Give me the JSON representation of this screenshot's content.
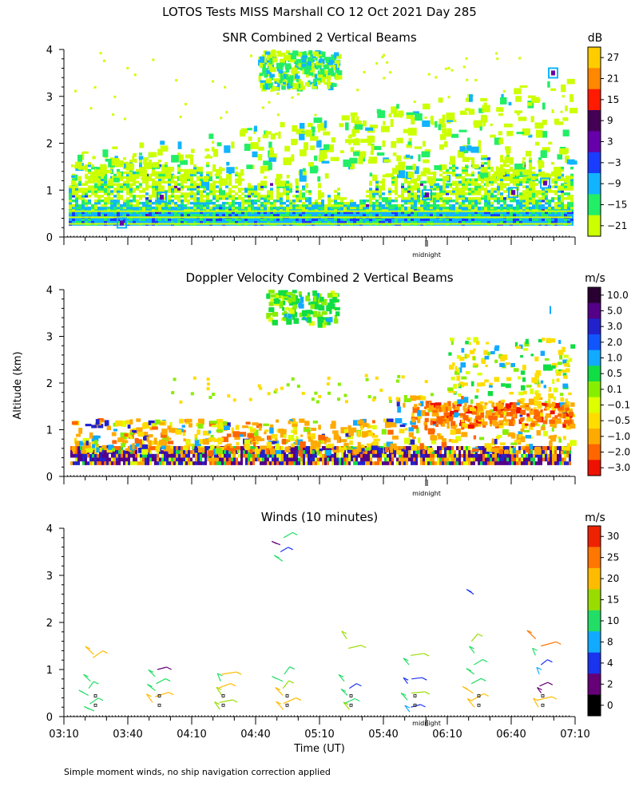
{
  "title": "LOTOS Tests MISS Marshall CO  12 Oct 2021 Day 285",
  "ylabel": "Altitude (km)",
  "xlabel": "Time (UT)",
  "footnote": "Simple moment winds, no ship navigation correction applied",
  "midnight_label": "midnight",
  "colors": {
    "axis": "#000000",
    "background": "#ffffff"
  },
  "chart_data": [
    {
      "id": "snr",
      "type": "heatmap",
      "title": "SNR Combined 2 Vertical Beams",
      "ylim": [
        0,
        4
      ],
      "yticks": [
        "0",
        "1",
        "2",
        "3",
        "4"
      ],
      "xlim_minutes": [
        190,
        430
      ],
      "colorbar": {
        "unit": "dB",
        "labels": [
          "27",
          "21",
          "15",
          "9",
          "3",
          "−3",
          "−9",
          "−15",
          "−21"
        ],
        "colors": [
          "#ffcc00",
          "#ff8800",
          "#ff1a00",
          "#440055",
          "#6600aa",
          "#1a3cff",
          "#11b4ff",
          "#22ee66",
          "#ccff00"
        ]
      }
    },
    {
      "id": "doppler",
      "type": "heatmap",
      "title": "Doppler Velocity Combined 2 Vertical Beams",
      "ylim": [
        0,
        4
      ],
      "yticks": [
        "0",
        "1",
        "2",
        "3",
        "4"
      ],
      "xlim_minutes": [
        190,
        430
      ],
      "colorbar": {
        "unit": "m/s",
        "labels": [
          "10.0",
          "5.0",
          "3.0",
          "2.0",
          "1.0",
          "0.5",
          "0.1",
          "−0.1",
          "−0.5",
          "−1.0",
          "−2.0",
          "−3.0"
        ],
        "colors": [
          "#2a0033",
          "#550088",
          "#2222cc",
          "#1155ff",
          "#11aaff",
          "#11dd44",
          "#88ee00",
          "#ddff00",
          "#ffdd00",
          "#ffaa00",
          "#ff6600",
          "#ee1100"
        ]
      }
    },
    {
      "id": "winds",
      "type": "scatter",
      "title": "Winds (10 minutes)",
      "ylim": [
        0,
        4
      ],
      "yticks": [
        "0",
        "1",
        "2",
        "3",
        "4"
      ],
      "xlim_minutes": [
        190,
        430
      ],
      "xticks": [
        "03:10",
        "03:40",
        "04:10",
        "04:40",
        "05:10",
        "05:40",
        "06:10",
        "06:40",
        "07:10"
      ],
      "colorbar": {
        "unit": "m/s",
        "labels": [
          "30",
          "25",
          "20",
          "15",
          "10",
          "8",
          "4",
          "2",
          "0"
        ],
        "colors": [
          "#ee2200",
          "#ff7700",
          "#ffbb00",
          "#99dd00",
          "#22dd66",
          "#11aaff",
          "#1a33ee",
          "#660077",
          "#000000"
        ]
      },
      "profiles": [
        {
          "time_min": 205,
          "barbs": [
            [
              0.12,
              10
            ],
            [
              0.27,
              12
            ],
            [
              0.45,
              12
            ],
            [
              0.6,
              10
            ],
            [
              0.75,
              14
            ],
            [
              1.25,
              20
            ],
            [
              1.32,
              22
            ]
          ]
        },
        {
          "time_min": 235,
          "barbs": [
            [
              0.3,
              20
            ],
            [
              0.42,
              22
            ],
            [
              0.55,
              14
            ],
            [
              0.7,
              10
            ],
            [
              0.85,
              12
            ],
            [
              1.0,
              2
            ]
          ]
        },
        {
          "time_min": 265,
          "barbs": [
            [
              0.15,
              15
            ],
            [
              0.3,
              16
            ],
            [
              0.45,
              18
            ],
            [
              0.6,
              20
            ],
            [
              0.75,
              14
            ],
            [
              0.9,
              20
            ]
          ]
        },
        {
          "time_min": 295,
          "barbs": [
            [
              0.15,
              20
            ],
            [
              0.28,
              22
            ],
            [
              0.45,
              20
            ],
            [
              0.6,
              16
            ],
            [
              0.75,
              14
            ],
            [
              0.9,
              14
            ],
            [
              3.3,
              12
            ],
            [
              3.5,
              4
            ],
            [
              3.65,
              2
            ],
            [
              3.8,
              10
            ]
          ]
        },
        {
          "time_min": 325,
          "barbs": [
            [
              0.15,
              15
            ],
            [
              0.28,
              12
            ],
            [
              0.45,
              10
            ],
            [
              0.6,
              4
            ],
            [
              0.75,
              10
            ],
            [
              1.45,
              15
            ],
            [
              1.65,
              15
            ]
          ]
        },
        {
          "time_min": 355,
          "barbs": [
            [
              0.1,
              8
            ],
            [
              0.2,
              4
            ],
            [
              0.35,
              14
            ],
            [
              0.5,
              15
            ],
            [
              0.7,
              4
            ],
            [
              0.8,
              4
            ],
            [
              1.1,
              10
            ],
            [
              1.3,
              15
            ]
          ]
        },
        {
          "time_min": 385,
          "barbs": [
            [
              0.2,
              22
            ],
            [
              0.35,
              22
            ],
            [
              0.5,
              20
            ],
            [
              0.7,
              12
            ],
            [
              0.9,
              10
            ],
            [
              1.1,
              10
            ],
            [
              1.35,
              10
            ],
            [
              1.6,
              15
            ],
            [
              2.6,
              4
            ]
          ]
        },
        {
          "time_min": 415,
          "barbs": [
            [
              0.2,
              22
            ],
            [
              0.35,
              22
            ],
            [
              0.5,
              2
            ],
            [
              0.65,
              2
            ],
            [
              0.9,
              8
            ],
            [
              1.1,
              4
            ],
            [
              1.3,
              10
            ],
            [
              1.5,
              25
            ],
            [
              1.65,
              25
            ]
          ]
        }
      ]
    }
  ]
}
